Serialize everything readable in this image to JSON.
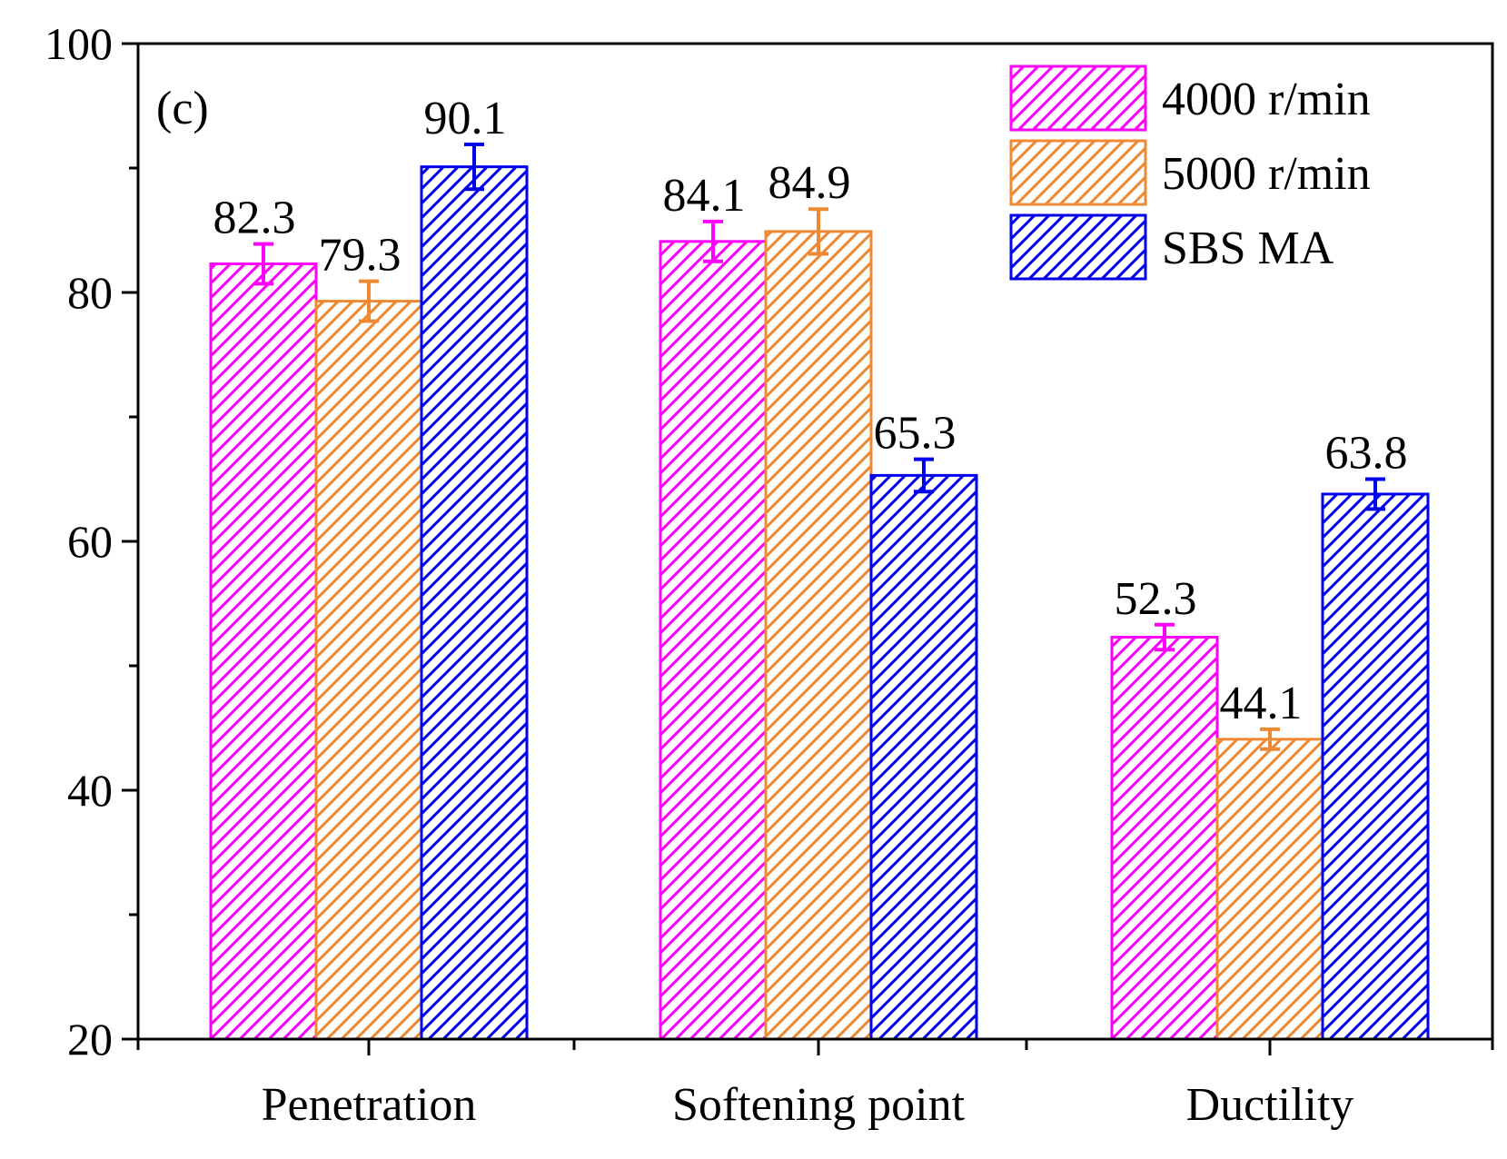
{
  "chart_data": {
    "type": "bar",
    "panel_label": "(c)",
    "title": "",
    "xlabel": "",
    "ylabel": "",
    "categories": [
      "Penetration",
      "Softening point",
      "Ductility"
    ],
    "ylim": [
      20,
      100
    ],
    "yticks": [
      "20",
      "40",
      "60",
      "80",
      "100"
    ],
    "legend_position": "top-right",
    "series": [
      {
        "name": "4000 r/min",
        "color": "#ff00ff",
        "values": [
          82.3,
          84.1,
          52.3
        ],
        "labels": [
          "82.3",
          "84.1",
          "52.3"
        ],
        "errors": [
          1.6,
          1.6,
          1.0
        ]
      },
      {
        "name": "5000 r/min",
        "color": "#ee8833",
        "values": [
          79.3,
          84.9,
          44.1
        ],
        "labels": [
          "79.3",
          "84.9",
          "44.1"
        ],
        "errors": [
          1.6,
          1.8,
          0.8
        ]
      },
      {
        "name": "SBS MA",
        "color": "#0000ee",
        "values": [
          90.1,
          65.3,
          63.8
        ],
        "labels": [
          "90.1",
          "65.3",
          "63.8"
        ],
        "errors": [
          1.8,
          1.3,
          1.2
        ]
      }
    ]
  }
}
